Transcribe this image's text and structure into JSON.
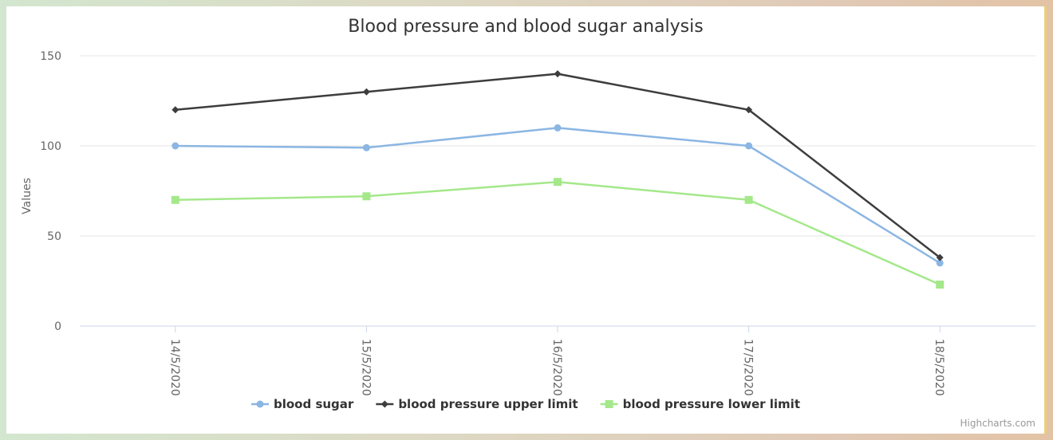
{
  "chart_data": {
    "type": "line",
    "title": "Blood pressure and blood sugar analysis",
    "ylabel": "Values",
    "xlabel": "",
    "categories": [
      "14/5/2020",
      "15/5/2020",
      "16/5/2020",
      "17/5/2020",
      "18/5/2020"
    ],
    "ylim": [
      0,
      150
    ],
    "yticks": [
      0,
      50,
      100,
      150
    ],
    "grid": true,
    "legend_position": "bottom-center",
    "series": [
      {
        "name": "blood sugar",
        "values": [
          100,
          99,
          110,
          100,
          35
        ],
        "color": "#8bb6e3",
        "marker": "circle"
      },
      {
        "name": "blood pressure upper limit",
        "values": [
          120,
          130,
          140,
          120,
          38
        ],
        "color": "#3d3d3f",
        "marker": "diamond"
      },
      {
        "name": "blood pressure lower limit",
        "values": [
          70,
          72,
          80,
          70,
          23
        ],
        "color": "#a4e88a",
        "marker": "square"
      }
    ],
    "credits": "Highcharts.com"
  }
}
